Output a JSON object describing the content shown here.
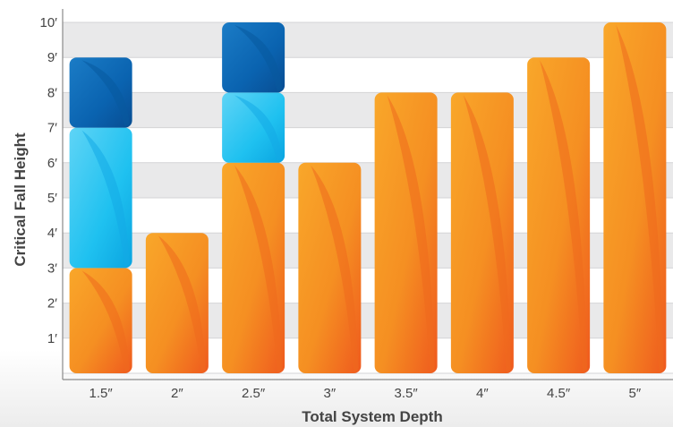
{
  "chart_data": {
    "type": "bar",
    "stacked": true,
    "title": "",
    "xlabel": "Total System Depth",
    "ylabel": "Critical Fall Height",
    "categories": [
      "1.5″",
      "2″",
      "2.5″",
      "3″",
      "3.5″",
      "4″",
      "4.5″",
      "5″"
    ],
    "y_ticks": [
      "1′",
      "2′",
      "3′",
      "4′",
      "5′",
      "6′",
      "7′",
      "8′",
      "9′",
      "10′"
    ],
    "ylim": [
      0,
      10
    ],
    "grid": true,
    "legend": "none",
    "series": [
      {
        "color": "#f28a1f",
        "values": [
          3,
          4,
          6,
          6,
          8,
          8,
          9,
          10
        ]
      },
      {
        "color": "#1fc1f0",
        "values": [
          4,
          0,
          2,
          0,
          0,
          0,
          0,
          0
        ]
      },
      {
        "color": "#0a63b0",
        "values": [
          2,
          0,
          2,
          0,
          0,
          0,
          0,
          0
        ]
      }
    ]
  }
}
